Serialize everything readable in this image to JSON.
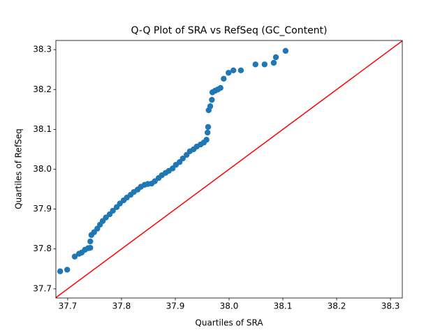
{
  "chart_data": {
    "type": "scatter",
    "title": "Q-Q Plot of SRA vs RefSeq (GC_Content)",
    "x_label": "Quartiles of SRA",
    "y_label": "Quartiles of RefSeq",
    "x": [
      37.686,
      37.699,
      37.713,
      37.721,
      37.726,
      37.732,
      37.738,
      37.742,
      37.742,
      37.744,
      37.749,
      37.755,
      37.76,
      37.765,
      37.771,
      37.778,
      37.784,
      37.791,
      37.797,
      37.804,
      37.81,
      37.817,
      37.823,
      37.83,
      37.836,
      37.843,
      37.849,
      37.856,
      37.862,
      37.869,
      37.875,
      37.882,
      37.888,
      37.895,
      37.901,
      37.908,
      37.914,
      37.921,
      37.927,
      37.934,
      37.94,
      37.947,
      37.953,
      37.958,
      37.96,
      37.961,
      37.962,
      37.965,
      37.968,
      37.969,
      37.974,
      37.979,
      37.984,
      37.99,
      37.999,
      38.008,
      38.022,
      38.049,
      38.066,
      38.083,
      38.087,
      38.105
    ],
    "series": [
      {
        "name": "RefSeq",
        "color": "#1f77b4",
        "values": [
          37.744,
          37.748,
          37.781,
          37.788,
          37.791,
          37.798,
          37.802,
          37.803,
          37.819,
          37.835,
          37.842,
          37.851,
          37.861,
          37.87,
          37.879,
          37.887,
          37.896,
          37.905,
          37.914,
          37.922,
          37.929,
          37.936,
          37.943,
          37.949,
          37.956,
          37.961,
          37.963,
          37.964,
          37.97,
          37.978,
          37.985,
          37.991,
          37.996,
          38.002,
          38.011,
          38.018,
          38.027,
          38.036,
          38.045,
          38.05,
          38.057,
          38.062,
          38.067,
          38.074,
          38.092,
          38.106,
          38.148,
          38.158,
          38.174,
          38.193,
          38.197,
          38.2,
          38.204,
          38.227,
          38.242,
          38.248,
          38.248,
          38.263,
          38.263,
          38.267,
          38.281,
          38.297
        ]
      }
    ],
    "xlim": [
      37.678,
      38.322
    ],
    "ylim": [
      37.677,
      38.323
    ],
    "xticks": [
      37.7,
      37.8,
      37.9,
      {
        "value": 38,
        "label": "38.0"
      },
      38.1,
      38.2,
      38.3
    ],
    "yticks": [
      37.7,
      37.8,
      37.9,
      {
        "value": 38,
        "label": "38.0"
      },
      38.1,
      38.2,
      38.3
    ],
    "reference_line_color": "#ff0000",
    "grid": false
  }
}
